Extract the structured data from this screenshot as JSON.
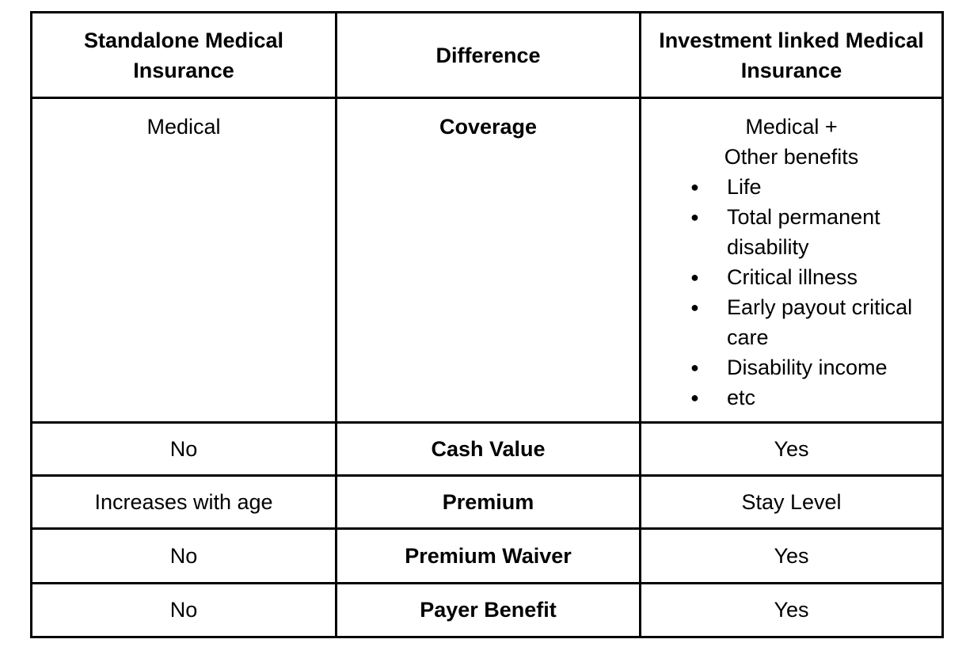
{
  "colors": {
    "text": "#000000",
    "border": "#000000",
    "background": "#ffffff"
  },
  "table": {
    "header": {
      "standalone": "Standalone Medical\nInsurance",
      "difference": "Difference",
      "investment": "Investment linked Medical\nInsurance"
    },
    "coverage": {
      "left": "Medical",
      "label": "Coverage",
      "right": {
        "lines": [
          "Medical +",
          "Other benefits"
        ],
        "bullet_glyph": "●",
        "bullets": [
          "Life",
          "Total permanent disability",
          "Critical illness",
          "Early payout critical care",
          "Disability income",
          "etc"
        ]
      }
    },
    "rows": [
      {
        "left": "No",
        "label": "Cash Value",
        "right": "Yes"
      },
      {
        "left": "Increases with age",
        "label": "Premium",
        "right": "Stay Level"
      },
      {
        "left": "No",
        "label": "Premium Waiver",
        "right": "Yes"
      },
      {
        "left": "No",
        "label": "Payer Benefit",
        "right": "Yes"
      }
    ]
  }
}
